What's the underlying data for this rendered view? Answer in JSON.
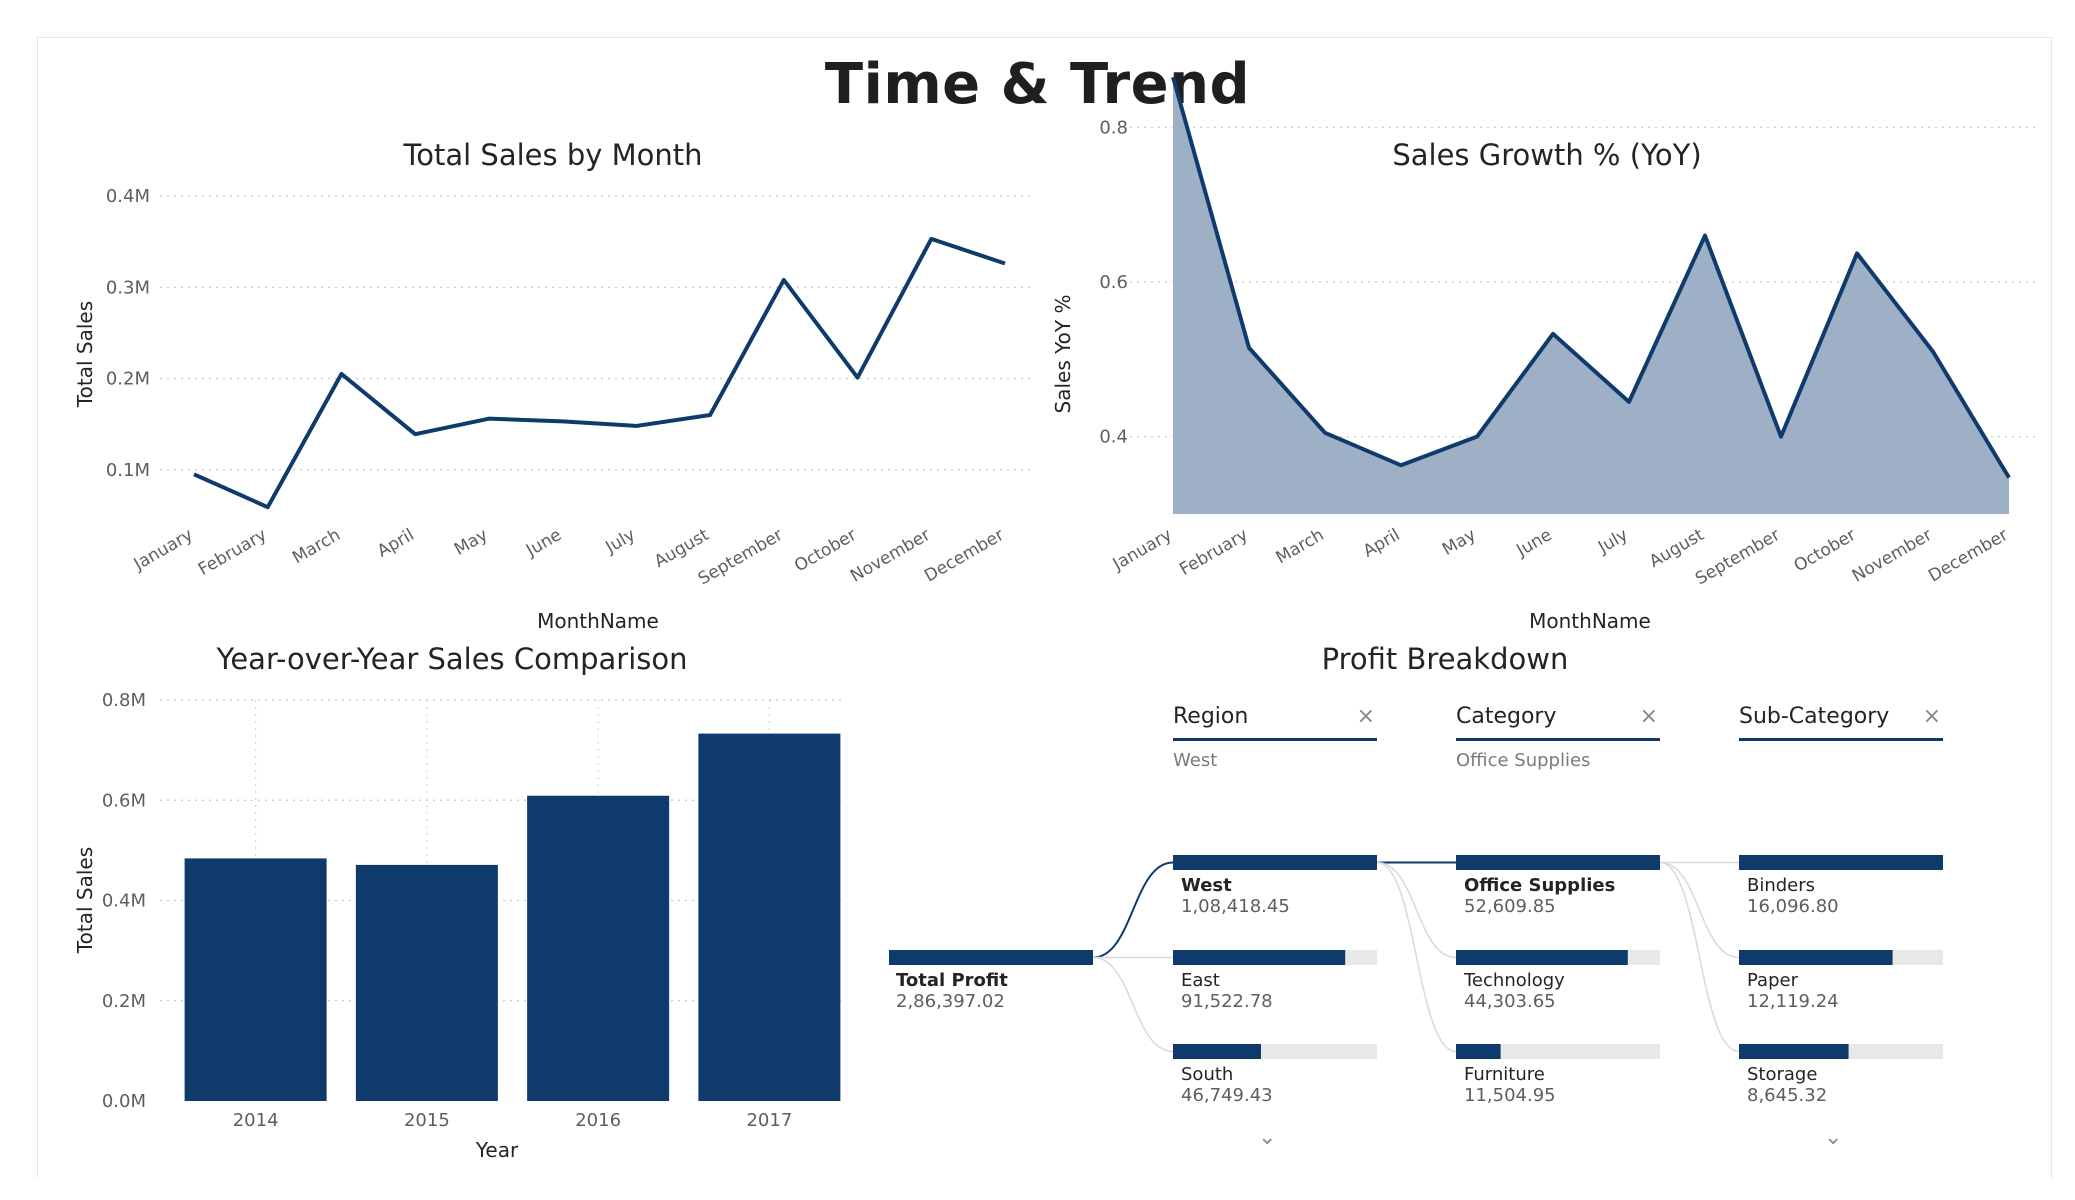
{
  "page": {
    "title": "Time & Trend"
  },
  "chart_data": [
    {
      "id": "monthly",
      "type": "line",
      "title": "Total Sales by Month",
      "xlabel": "MonthName",
      "ylabel": "Total Sales",
      "categories": [
        "January",
        "February",
        "March",
        "April",
        "May",
        "June",
        "July",
        "August",
        "September",
        "October",
        "November",
        "December"
      ],
      "values": [
        0.095,
        0.059,
        0.205,
        0.139,
        0.156,
        0.153,
        0.148,
        0.16,
        0.308,
        0.201,
        0.353,
        0.326
      ],
      "value_unit": "M",
      "ylim": [
        0,
        0.4
      ],
      "yticks": [
        "0.1M",
        "0.2M",
        "0.3M",
        "0.4M"
      ],
      "ytick_values": [
        0.1,
        0.2,
        0.3,
        0.4
      ],
      "grid": true,
      "color": "#0f3a6c"
    },
    {
      "id": "growth",
      "type": "area",
      "title": "Sales Growth % (YoY)",
      "xlabel": "MonthName",
      "ylabel": "Sales YoY %",
      "categories": [
        "January",
        "February",
        "March",
        "April",
        "May",
        "June",
        "July",
        "August",
        "September",
        "October",
        "November",
        "December"
      ],
      "values": [
        0.865,
        0.515,
        0.405,
        0.363,
        0.4,
        0.533,
        0.445,
        0.66,
        0.4,
        0.637,
        0.51,
        0.347
      ],
      "ylim": [
        0.3,
        0.9
      ],
      "yticks": [
        "0.4",
        "0.6",
        "0.8"
      ],
      "ytick_values": [
        0.4,
        0.6,
        0.8
      ],
      "grid": true,
      "color": "#0f3a6c",
      "fill": "#9eb0c6"
    },
    {
      "id": "yearly",
      "type": "bar",
      "title": "Year-over-Year Sales Comparison",
      "xlabel": "Year",
      "ylabel": "Total Sales",
      "categories": [
        "2014",
        "2015",
        "2016",
        "2017"
      ],
      "values": [
        0.484,
        0.471,
        0.609,
        0.733
      ],
      "value_unit": "M",
      "ylim": [
        0,
        0.8
      ],
      "yticks": [
        "0.0M",
        "0.2M",
        "0.4M",
        "0.6M",
        "0.8M"
      ],
      "ytick_values": [
        0,
        0.2,
        0.4,
        0.6,
        0.8
      ],
      "grid": true,
      "color": "#0f3a6c"
    },
    {
      "id": "profit",
      "type": "decomposition-tree",
      "title": "Profit Breakdown",
      "root": {
        "name": "Total Profit",
        "value": 286397.02,
        "value_label": "2,86,397.02"
      },
      "levels": [
        {
          "name": "Region",
          "filter": "West",
          "nodes": [
            {
              "name": "West",
              "value": 108418.45,
              "value_label": "1,08,418.45",
              "selected": true
            },
            {
              "name": "East",
              "value": 91522.78,
              "value_label": "91,522.78",
              "selected": false
            },
            {
              "name": "South",
              "value": 46749.43,
              "value_label": "46,749.43",
              "selected": false
            }
          ],
          "more": true
        },
        {
          "name": "Category",
          "filter": "Office Supplies",
          "nodes": [
            {
              "name": "Office Supplies",
              "value": 52609.85,
              "value_label": "52,609.85",
              "selected": true
            },
            {
              "name": "Technology",
              "value": 44303.65,
              "value_label": "44,303.65",
              "selected": false
            },
            {
              "name": "Furniture",
              "value": 11504.95,
              "value_label": "11,504.95",
              "selected": false
            }
          ],
          "more": false
        },
        {
          "name": "Sub-Category",
          "filter": "",
          "nodes": [
            {
              "name": "Binders",
              "value": 16096.8,
              "value_label": "16,096.80",
              "selected": false
            },
            {
              "name": "Paper",
              "value": 12119.24,
              "value_label": "12,119.24",
              "selected": false
            },
            {
              "name": "Storage",
              "value": 8645.32,
              "value_label": "8,645.32",
              "selected": false
            }
          ],
          "more": true
        }
      ],
      "bar_color": "#0f3a6c",
      "track_color": "#e8e8e8"
    }
  ],
  "icons": {
    "close": "close-icon",
    "expand": "chevron-down-icon"
  }
}
